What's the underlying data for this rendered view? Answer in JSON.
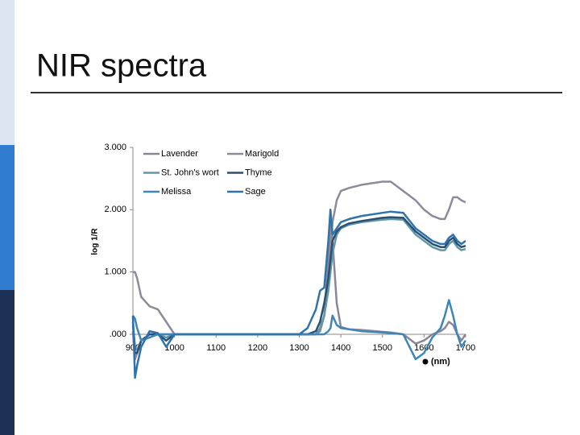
{
  "chart_data": {
    "type": "line",
    "title": "NIR spectra",
    "y_label": "log 1/R",
    "x_label": "(nm)",
    "x": [
      900,
      905,
      910,
      920,
      940,
      960,
      980,
      1000,
      1100,
      1200,
      1300,
      1320,
      1340,
      1350,
      1360,
      1370,
      1375,
      1380,
      1390,
      1400,
      1420,
      1450,
      1500,
      1520,
      1550,
      1580,
      1600,
      1620,
      1640,
      1650,
      1660,
      1670,
      1680,
      1690,
      1700
    ],
    "xlim": [
      900,
      1700
    ],
    "xticks": [
      900,
      1000,
      1100,
      1200,
      1300,
      1400,
      1500,
      1600,
      1700
    ],
    "ylim": [
      0,
      3
    ],
    "yticks": [
      {
        "value": 0,
        "label": ".000"
      },
      {
        "value": 1,
        "label": "1.000"
      },
      {
        "value": 2,
        "label": "2.000"
      },
      {
        "value": 3,
        "label": "3.000"
      }
    ],
    "series": [
      {
        "name": "Lavender",
        "color": "#8a8697",
        "values": [
          0.05,
          -0.4,
          -0.3,
          -0.1,
          0,
          0,
          0,
          0,
          0,
          0,
          0,
          0,
          0,
          0.05,
          0.3,
          1.2,
          1.9,
          1.5,
          0.5,
          0.12,
          0.08,
          0.07,
          0.04,
          0.03,
          0,
          -0.15,
          -0.1,
          0,
          0.05,
          0.1,
          0.2,
          0.15,
          0,
          -0.1,
          0
        ]
      },
      {
        "name": "Marigold",
        "color": "#8e8a99",
        "values": [
          1.0,
          1.0,
          0.9,
          0.6,
          0.45,
          0.4,
          0.2,
          0,
          0,
          0,
          0,
          0,
          0,
          0.05,
          0.3,
          0.9,
          1.4,
          1.8,
          2.15,
          2.3,
          2.35,
          2.4,
          2.45,
          2.45,
          2.3,
          2.15,
          2.0,
          1.9,
          1.85,
          1.85,
          2.0,
          2.2,
          2.2,
          2.15,
          2.12
        ]
      },
      {
        "name": "St. John's wort",
        "color": "#5f98a6",
        "values": [
          0.15,
          -0.2,
          -0.25,
          -0.1,
          0,
          0,
          -0.05,
          0,
          0,
          0,
          0,
          0,
          0,
          0.1,
          0.3,
          0.7,
          1.0,
          1.3,
          1.6,
          1.7,
          1.76,
          1.8,
          1.84,
          1.85,
          1.84,
          1.6,
          1.5,
          1.4,
          1.35,
          1.35,
          1.45,
          1.5,
          1.4,
          1.35,
          1.37
        ]
      },
      {
        "name": "Thyme",
        "color": "#2c4f72",
        "values": [
          0.2,
          -0.3,
          -0.3,
          -0.1,
          0,
          0,
          -0.1,
          0,
          0,
          0,
          0,
          0,
          0.05,
          0.2,
          0.5,
          0.9,
          1.2,
          1.5,
          1.65,
          1.72,
          1.78,
          1.82,
          1.87,
          1.88,
          1.87,
          1.65,
          1.55,
          1.45,
          1.4,
          1.4,
          1.5,
          1.55,
          1.45,
          1.4,
          1.42
        ]
      },
      {
        "name": "Melissa",
        "color": "#3f86b8",
        "values": [
          0.3,
          0.25,
          0.1,
          -0.1,
          -0.05,
          0,
          0,
          0,
          0,
          0,
          0,
          0,
          0,
          0,
          0,
          0.05,
          0.1,
          0.3,
          0.15,
          0.1,
          0.08,
          0.05,
          0.03,
          0.02,
          0,
          -0.4,
          -0.3,
          -0.05,
          0.1,
          0.3,
          0.55,
          0.3,
          0,
          -0.2,
          -0.1
        ]
      },
      {
        "name": "Sage",
        "color": "#2f73ad",
        "values": [
          0.3,
          -0.7,
          -0.5,
          -0.2,
          0.05,
          0.02,
          -0.2,
          0,
          0,
          0,
          0,
          0.1,
          0.4,
          0.7,
          0.75,
          1.5,
          2.0,
          1.6,
          1.7,
          1.8,
          1.85,
          1.9,
          1.95,
          1.97,
          1.95,
          1.7,
          1.6,
          1.5,
          1.45,
          1.45,
          1.55,
          1.6,
          1.5,
          1.45,
          1.5
        ]
      }
    ]
  }
}
